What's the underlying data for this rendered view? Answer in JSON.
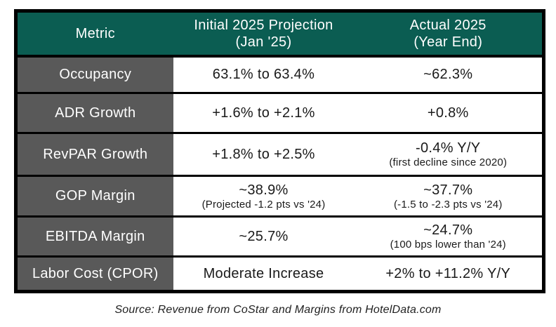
{
  "colors": {
    "header_bg": "#0b5d52",
    "metric_column_bg": "#595959",
    "border": "#000000",
    "data_text": "#1a1a1a"
  },
  "chart_data": {
    "type": "table",
    "title": "",
    "columns": [
      "Metric",
      "Initial 2025 Projection (Jan '25)",
      "Actual 2025 (Year End)"
    ],
    "rows": [
      [
        "Occupancy",
        "63.1% to 63.4%",
        "~62.3%"
      ],
      [
        "ADR Growth",
        "+1.6% to +2.1%",
        "+0.8%"
      ],
      [
        "RevPAR Growth",
        "+1.8% to +2.5%",
        "-0.4% Y/Y (first decline since 2020)"
      ],
      [
        "GOP Margin",
        "~38.9% (Projected -1.2 pts vs '24)",
        "~37.7% (-1.5 to -2.3 pts vs '24)"
      ],
      [
        "EBITDA Margin",
        "~25.7%",
        "~24.7% (100 bps lower than '24)"
      ],
      [
        "Labor Cost (CPOR)",
        "Moderate Increase",
        "+2% to +11.2% Y/Y"
      ]
    ],
    "source_note": "Source: Revenue from CoStar and Margins from HotelData.com"
  },
  "table": {
    "header": {
      "metric": "Metric",
      "projection_line1": "Initial 2025 Projection",
      "projection_line2": "(Jan '25)",
      "actual_line1": "Actual 2025",
      "actual_line2": "(Year End)"
    },
    "rows": [
      {
        "metric": "Occupancy",
        "projection": "63.1% to 63.4%",
        "actual": "~62.3%"
      },
      {
        "metric": "ADR Growth",
        "projection": "+1.6% to +2.1%",
        "actual": "+0.8%"
      },
      {
        "metric": "RevPAR Growth",
        "projection": "+1.8% to +2.5%",
        "actual": "-0.4% Y/Y",
        "actual_note": "(first decline since 2020)"
      },
      {
        "metric": "GOP Margin",
        "projection": "~38.9%",
        "projection_note": "(Projected -1.2 pts vs '24)",
        "actual": "~37.7%",
        "actual_note": "(-1.5 to -2.3 pts vs '24)"
      },
      {
        "metric": "EBITDA Margin",
        "projection": "~25.7%",
        "actual": "~24.7%",
        "actual_note": "(100 bps lower than '24)"
      },
      {
        "metric": "Labor Cost (CPOR)",
        "projection": "Moderate Increase",
        "actual": "+2% to +11.2% Y/Y"
      }
    ]
  },
  "footer": {
    "source": "Source: Revenue from CoStar and Margins from HotelData.com"
  }
}
